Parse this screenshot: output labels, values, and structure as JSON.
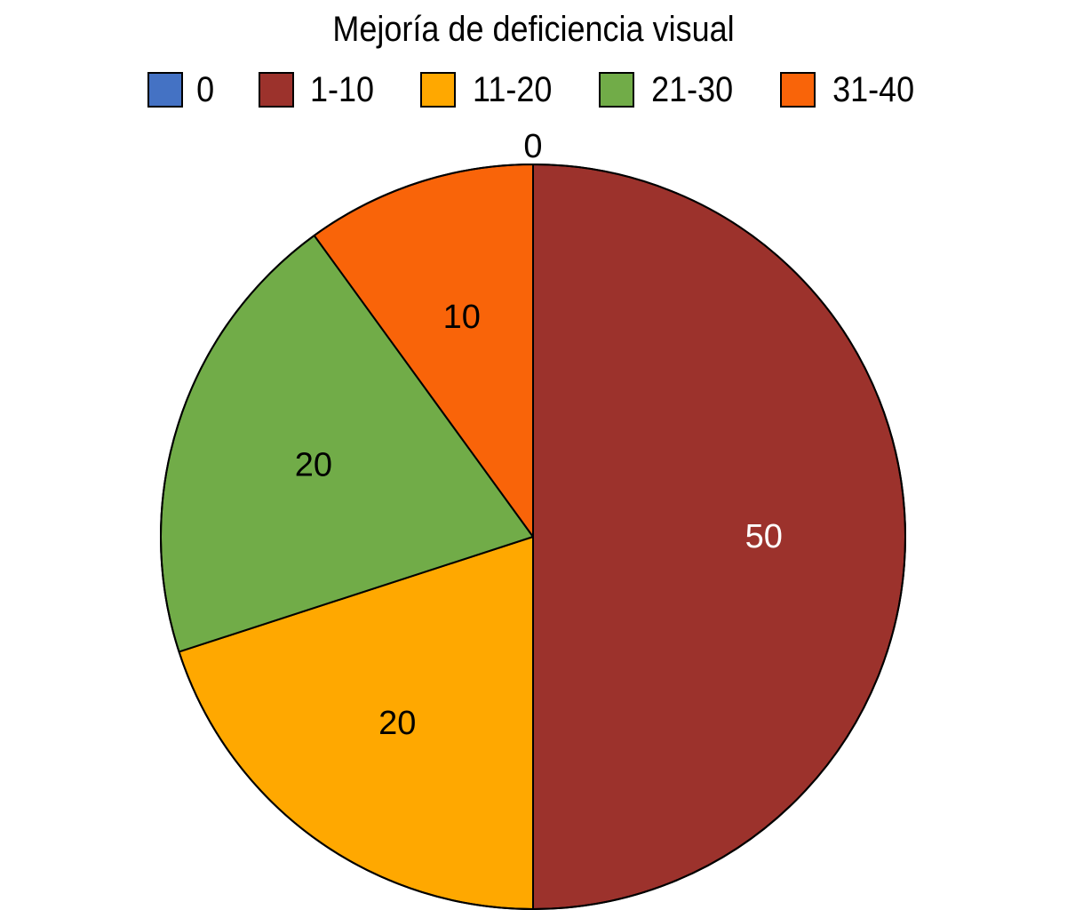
{
  "chart_data": {
    "type": "pie",
    "title": "Mejoría de deficiencia visual",
    "legend_position": "top",
    "categories": [
      "0",
      "1-10",
      "11-20",
      "21-30",
      "31-40"
    ],
    "values": [
      0,
      50,
      20,
      20,
      10
    ],
    "labels": [
      "0",
      "50",
      "20",
      "20",
      "10"
    ],
    "colors": [
      "#4472C4",
      "#9C322C",
      "#FFA800",
      "#71AC48",
      "#F96409"
    ],
    "label_colors": [
      "#000000",
      "#ffffff",
      "#000000",
      "#000000",
      "#000000"
    ],
    "start": "top",
    "direction": "clockwise"
  }
}
